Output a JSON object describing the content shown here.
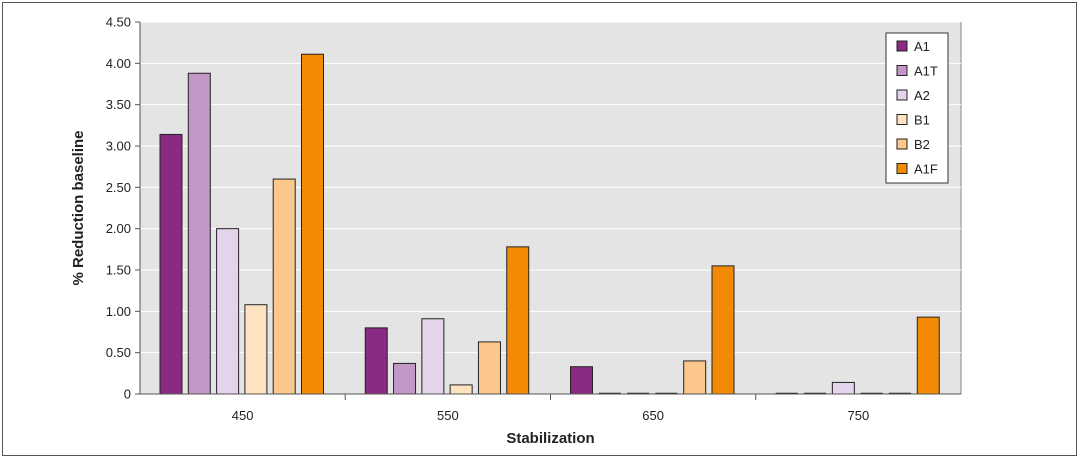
{
  "chart_data": {
    "type": "bar",
    "xlabel": "Stabilization",
    "ylabel": "% Reduction baseline",
    "categories": [
      "450",
      "550",
      "650",
      "750"
    ],
    "ylim": [
      0,
      4.5
    ],
    "yticks": [
      "0",
      "0.50",
      "1.00",
      "1.50",
      "2.00",
      "2.50",
      "3.00",
      "3.50",
      "4.00",
      "4.50"
    ],
    "grid": true,
    "legend_position": "top-right",
    "series": [
      {
        "name": "A1",
        "color": "#8B2A82",
        "values": [
          3.14,
          0.8,
          0.33,
          0
        ]
      },
      {
        "name": "A1T",
        "color": "#C297C8",
        "values": [
          3.88,
          0.37,
          0,
          0
        ]
      },
      {
        "name": "A2",
        "color": "#E4D3EA",
        "values": [
          2.0,
          0.91,
          0,
          0.14
        ]
      },
      {
        "name": "B1",
        "color": "#FDE3C0",
        "values": [
          1.08,
          0.11,
          0,
          0
        ]
      },
      {
        "name": "B2",
        "color": "#FBC78A",
        "values": [
          2.6,
          0.63,
          0.4,
          0
        ]
      },
      {
        "name": "A1F",
        "color": "#F28A06",
        "values": [
          4.11,
          1.78,
          1.55,
          0.93
        ]
      }
    ]
  }
}
